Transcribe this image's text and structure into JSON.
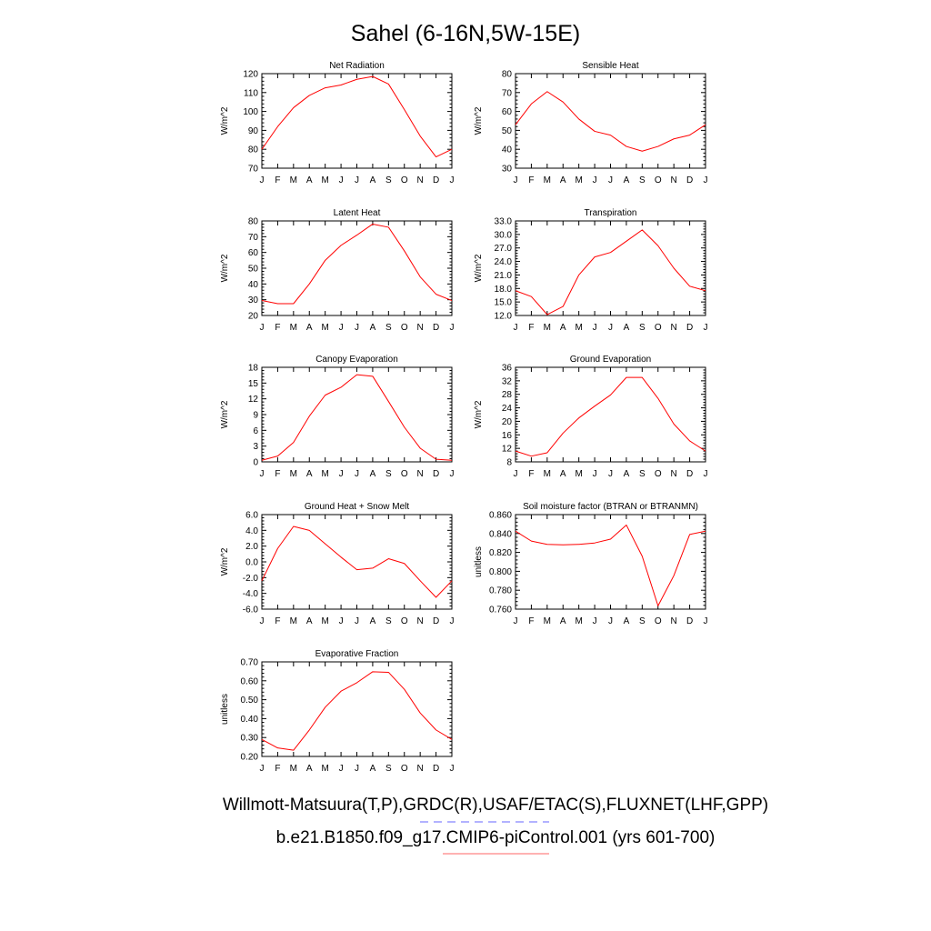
{
  "figure": {
    "title": "Sahel (6-16N,5W-15E)",
    "footer": {
      "obs_label": "Willmott-Matsuura(T,P),GRDC(R),USAF/ETAC(S),FLUXNET(LHF,GPP)",
      "model_label": "b.e21.B1850.f09_g17.CMIP6-piControl.001 (yrs 601-700)",
      "obs_line_color": "#6666ff",
      "model_line_color": "#ff6666"
    }
  },
  "chart_data": [
    {
      "type": "line",
      "title": "Net Radiation",
      "ylabel": "W/m^2",
      "categories": [
        "J",
        "F",
        "M",
        "A",
        "M",
        "J",
        "J",
        "A",
        "S",
        "O",
        "N",
        "D",
        "J"
      ],
      "ylim": [
        70,
        120
      ],
      "yticks": [
        70,
        80,
        90,
        100,
        110,
        120
      ],
      "ytick_labels": [
        "70",
        "80",
        "90",
        "100",
        "110",
        "120"
      ],
      "series": [
        {
          "color": "#ff0000",
          "values": [
            80,
            92,
            102,
            108.5,
            112.5,
            114,
            117,
            118.5,
            114.5,
            101,
            87,
            76,
            80
          ]
        }
      ]
    },
    {
      "type": "line",
      "title": "Sensible Heat",
      "ylabel": "W/m^2",
      "categories": [
        "J",
        "F",
        "M",
        "A",
        "M",
        "J",
        "J",
        "A",
        "S",
        "O",
        "N",
        "D",
        "J"
      ],
      "ylim": [
        30,
        80
      ],
      "yticks": [
        30,
        40,
        50,
        60,
        70,
        80
      ],
      "ytick_labels": [
        "30",
        "40",
        "50",
        "60",
        "70",
        "80"
      ],
      "series": [
        {
          "color": "#ff0000",
          "values": [
            53,
            64,
            70.5,
            65,
            56,
            49.5,
            47.5,
            41.5,
            39,
            41.5,
            45.5,
            47.5,
            53
          ]
        }
      ]
    },
    {
      "type": "line",
      "title": "Latent Heat",
      "ylabel": "W/m^2",
      "categories": [
        "J",
        "F",
        "M",
        "A",
        "M",
        "J",
        "J",
        "A",
        "S",
        "O",
        "N",
        "D",
        "J"
      ],
      "ylim": [
        20,
        80
      ],
      "yticks": [
        20,
        30,
        40,
        50,
        60,
        70,
        80
      ],
      "ytick_labels": [
        "20",
        "30",
        "40",
        "50",
        "60",
        "70",
        "80"
      ],
      "series": [
        {
          "color": "#ff0000",
          "values": [
            29.5,
            27.5,
            27.5,
            40,
            55,
            64.5,
            71,
            78,
            76,
            61,
            44.5,
            33.5,
            29.5
          ]
        }
      ]
    },
    {
      "type": "line",
      "title": "Transpiration",
      "ylabel": "W/m^2",
      "categories": [
        "J",
        "F",
        "M",
        "A",
        "M",
        "J",
        "J",
        "A",
        "S",
        "O",
        "N",
        "D",
        "J"
      ],
      "ylim": [
        12,
        33
      ],
      "yticks": [
        12,
        15,
        18,
        21,
        24,
        27,
        30,
        33
      ],
      "ytick_labels": [
        "12.0",
        "15.0",
        "18.0",
        "21.0",
        "24.0",
        "27.0",
        "30.0",
        "33.0"
      ],
      "series": [
        {
          "color": "#ff0000",
          "values": [
            17.5,
            16.2,
            12.2,
            14,
            21,
            25,
            26,
            28.5,
            31,
            27.5,
            22.5,
            18.5,
            17.5
          ]
        }
      ]
    },
    {
      "type": "line",
      "title": "Canopy Evaporation",
      "ylabel": "W/m^2",
      "categories": [
        "J",
        "F",
        "M",
        "A",
        "M",
        "J",
        "J",
        "A",
        "S",
        "O",
        "N",
        "D",
        "J"
      ],
      "ylim": [
        0,
        18
      ],
      "yticks": [
        0,
        3,
        6,
        9,
        12,
        15,
        18
      ],
      "ytick_labels": [
        "0",
        "3",
        "6",
        "9",
        "12",
        "15",
        "18"
      ],
      "series": [
        {
          "color": "#ff0000",
          "values": [
            0.3,
            1.1,
            3.7,
            8.7,
            12.7,
            14.2,
            16.6,
            16.3,
            11.5,
            6.6,
            2.6,
            0.5,
            0.3
          ]
        }
      ]
    },
    {
      "type": "line",
      "title": "Ground Evaporation",
      "ylabel": "W/m^2",
      "categories": [
        "J",
        "F",
        "M",
        "A",
        "M",
        "J",
        "J",
        "A",
        "S",
        "O",
        "N",
        "D",
        "J"
      ],
      "ylim": [
        8,
        36
      ],
      "yticks": [
        8,
        12,
        16,
        20,
        24,
        28,
        32,
        36
      ],
      "ytick_labels": [
        "8",
        "12",
        "16",
        "20",
        "24",
        "28",
        "32",
        "36"
      ],
      "series": [
        {
          "color": "#ff0000",
          "values": [
            11.2,
            9.7,
            10.7,
            16.5,
            21,
            24.5,
            27.8,
            33,
            33,
            26.8,
            19.2,
            14.2,
            11.2
          ]
        }
      ]
    },
    {
      "type": "line",
      "title": "Ground Heat + Snow Melt",
      "ylabel": "W/m^2",
      "categories": [
        "J",
        "F",
        "M",
        "A",
        "M",
        "J",
        "J",
        "A",
        "S",
        "O",
        "N",
        "D",
        "J"
      ],
      "ylim": [
        -6,
        6
      ],
      "yticks": [
        -6,
        -4,
        -2,
        0,
        2,
        4,
        6
      ],
      "ytick_labels": [
        "-6.0",
        "-4.0",
        "-2.0",
        "0.0",
        "2.0",
        "4.0",
        "6.0"
      ],
      "series": [
        {
          "color": "#ff0000",
          "values": [
            -2.4,
            1.7,
            4.5,
            4.0,
            2.3,
            0.6,
            -1.0,
            -0.8,
            0.4,
            -0.2,
            -2.4,
            -4.5,
            -2.4
          ]
        }
      ]
    },
    {
      "type": "line",
      "title": "Soil moisture factor (BTRAN or BTRANMN)",
      "ylabel": "unitless",
      "categories": [
        "J",
        "F",
        "M",
        "A",
        "M",
        "J",
        "J",
        "A",
        "S",
        "O",
        "N",
        "D",
        "J"
      ],
      "ylim": [
        0.76,
        0.86
      ],
      "yticks": [
        0.76,
        0.78,
        0.8,
        0.82,
        0.84,
        0.86
      ],
      "ytick_labels": [
        "0.760",
        "0.780",
        "0.800",
        "0.820",
        "0.840",
        "0.860"
      ],
      "series": [
        {
          "color": "#ff0000",
          "values": [
            0.8425,
            0.832,
            0.8285,
            0.828,
            0.8285,
            0.83,
            0.834,
            0.849,
            0.816,
            0.7635,
            0.7955,
            0.839,
            0.8425
          ]
        }
      ]
    },
    {
      "type": "line",
      "title": "Evaporative Fraction",
      "ylabel": "unitless",
      "categories": [
        "J",
        "F",
        "M",
        "A",
        "M",
        "J",
        "J",
        "A",
        "S",
        "O",
        "N",
        "D",
        "J"
      ],
      "ylim": [
        0.2,
        0.7
      ],
      "yticks": [
        0.2,
        0.3,
        0.4,
        0.5,
        0.6,
        0.7
      ],
      "ytick_labels": [
        "0.20",
        "0.30",
        "0.40",
        "0.50",
        "0.60",
        "0.70"
      ],
      "series": [
        {
          "color": "#ff0000",
          "values": [
            0.29,
            0.245,
            0.233,
            0.34,
            0.46,
            0.545,
            0.59,
            0.648,
            0.645,
            0.555,
            0.43,
            0.34,
            0.29
          ]
        }
      ]
    }
  ]
}
